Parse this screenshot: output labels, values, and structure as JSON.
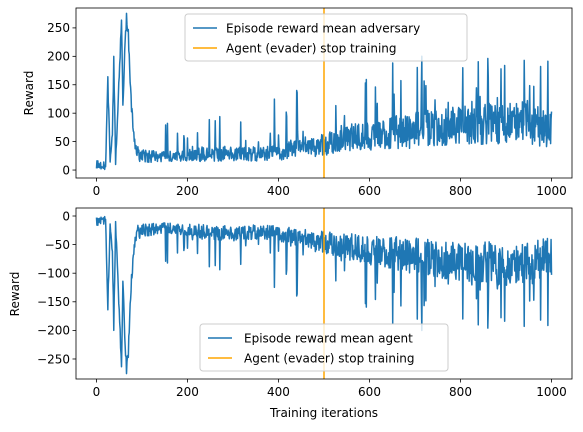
{
  "chart_data": [
    {
      "type": "line",
      "ylabel": "Reward",
      "xlabel": "",
      "xlim": [
        -45,
        1045
      ],
      "ylim": [
        -14,
        285
      ],
      "xticks": [
        0,
        200,
        400,
        600,
        800,
        1000
      ],
      "yticks": [
        0,
        50,
        100,
        150,
        200,
        250
      ],
      "legend_position": "top-center",
      "series": [
        {
          "name": "Episode reward mean adversary",
          "color": "#1f77b4",
          "anchors": [
            [
              0,
              8
            ],
            [
              10,
              3
            ],
            [
              20,
              5
            ],
            [
              25,
              155
            ],
            [
              30,
              20
            ],
            [
              35,
              60
            ],
            [
              38,
              190
            ],
            [
              42,
              15
            ],
            [
              46,
              90
            ],
            [
              50,
              170
            ],
            [
              55,
              260
            ],
            [
              58,
              120
            ],
            [
              62,
              200
            ],
            [
              66,
              272
            ],
            [
              70,
              240
            ],
            [
              74,
              150
            ],
            [
              78,
              100
            ],
            [
              82,
              60
            ],
            [
              88,
              30
            ],
            [
              100,
              25
            ],
            [
              150,
              22
            ],
            [
              200,
              25
            ],
            [
              250,
              28
            ],
            [
              300,
              30
            ],
            [
              350,
              28
            ],
            [
              400,
              30
            ],
            [
              450,
              40
            ],
            [
              500,
              45
            ],
            [
              550,
              55
            ],
            [
              600,
              60
            ],
            [
              650,
              65
            ],
            [
              700,
              70
            ],
            [
              750,
              75
            ],
            [
              800,
              80
            ],
            [
              850,
              80
            ],
            [
              900,
              85
            ],
            [
              950,
              85
            ],
            [
              1000,
              65
            ]
          ],
          "spike_max": [
            0,
            10,
            10,
            10,
            10,
            10,
            10,
            10,
            10,
            10,
            10,
            10,
            10,
            10,
            10,
            10,
            10,
            10,
            10,
            60,
            85,
            90,
            95,
            100,
            115,
            130,
            155,
            170,
            180,
            190,
            195,
            205,
            210,
            200,
            200,
            205,
            210,
            210
          ],
          "seed": 7,
          "n_points": 1001
        },
        {
          "name": "Agent (evader) stop training",
          "color": "#ffa500",
          "type": "vline",
          "x": 500
        }
      ]
    },
    {
      "type": "line",
      "ylabel": "Reward",
      "xlabel": "Training iterations",
      "xlim": [
        -45,
        1045
      ],
      "ylim": [
        -285,
        14
      ],
      "xticks": [
        0,
        200,
        400,
        600,
        800,
        1000
      ],
      "yticks": [
        0,
        -50,
        -100,
        -150,
        -200,
        -250
      ],
      "legend_position": "lower-center",
      "series": [
        {
          "name": "Episode reward mean agent",
          "color": "#1f77b4",
          "anchors": [
            [
              0,
              -8
            ],
            [
              10,
              -3
            ],
            [
              20,
              -5
            ],
            [
              25,
              -155
            ],
            [
              30,
              -20
            ],
            [
              35,
              -60
            ],
            [
              38,
              -190
            ],
            [
              42,
              -15
            ],
            [
              46,
              -90
            ],
            [
              50,
              -170
            ],
            [
              55,
              -260
            ],
            [
              58,
              -120
            ],
            [
              62,
              -200
            ],
            [
              66,
              -272
            ],
            [
              70,
              -240
            ],
            [
              74,
              -150
            ],
            [
              78,
              -100
            ],
            [
              82,
              -60
            ],
            [
              88,
              -30
            ],
            [
              100,
              -25
            ],
            [
              150,
              -22
            ],
            [
              200,
              -25
            ],
            [
              250,
              -28
            ],
            [
              300,
              -30
            ],
            [
              350,
              -28
            ],
            [
              400,
              -30
            ],
            [
              450,
              -40
            ],
            [
              500,
              -45
            ],
            [
              550,
              -55
            ],
            [
              600,
              -60
            ],
            [
              650,
              -65
            ],
            [
              700,
              -70
            ],
            [
              750,
              -75
            ],
            [
              800,
              -80
            ],
            [
              850,
              -80
            ],
            [
              900,
              -85
            ],
            [
              950,
              -85
            ],
            [
              1000,
              -65
            ]
          ],
          "spike_max": [
            0,
            10,
            10,
            10,
            10,
            10,
            10,
            10,
            10,
            10,
            10,
            10,
            10,
            10,
            10,
            10,
            10,
            10,
            10,
            60,
            85,
            90,
            95,
            100,
            115,
            130,
            155,
            170,
            180,
            190,
            195,
            205,
            210,
            200,
            200,
            205,
            210,
            210
          ],
          "seed": 7,
          "n_points": 1001
        },
        {
          "name": "Agent (evader) stop training",
          "color": "#ffa500",
          "type": "vline",
          "x": 500
        }
      ]
    }
  ]
}
